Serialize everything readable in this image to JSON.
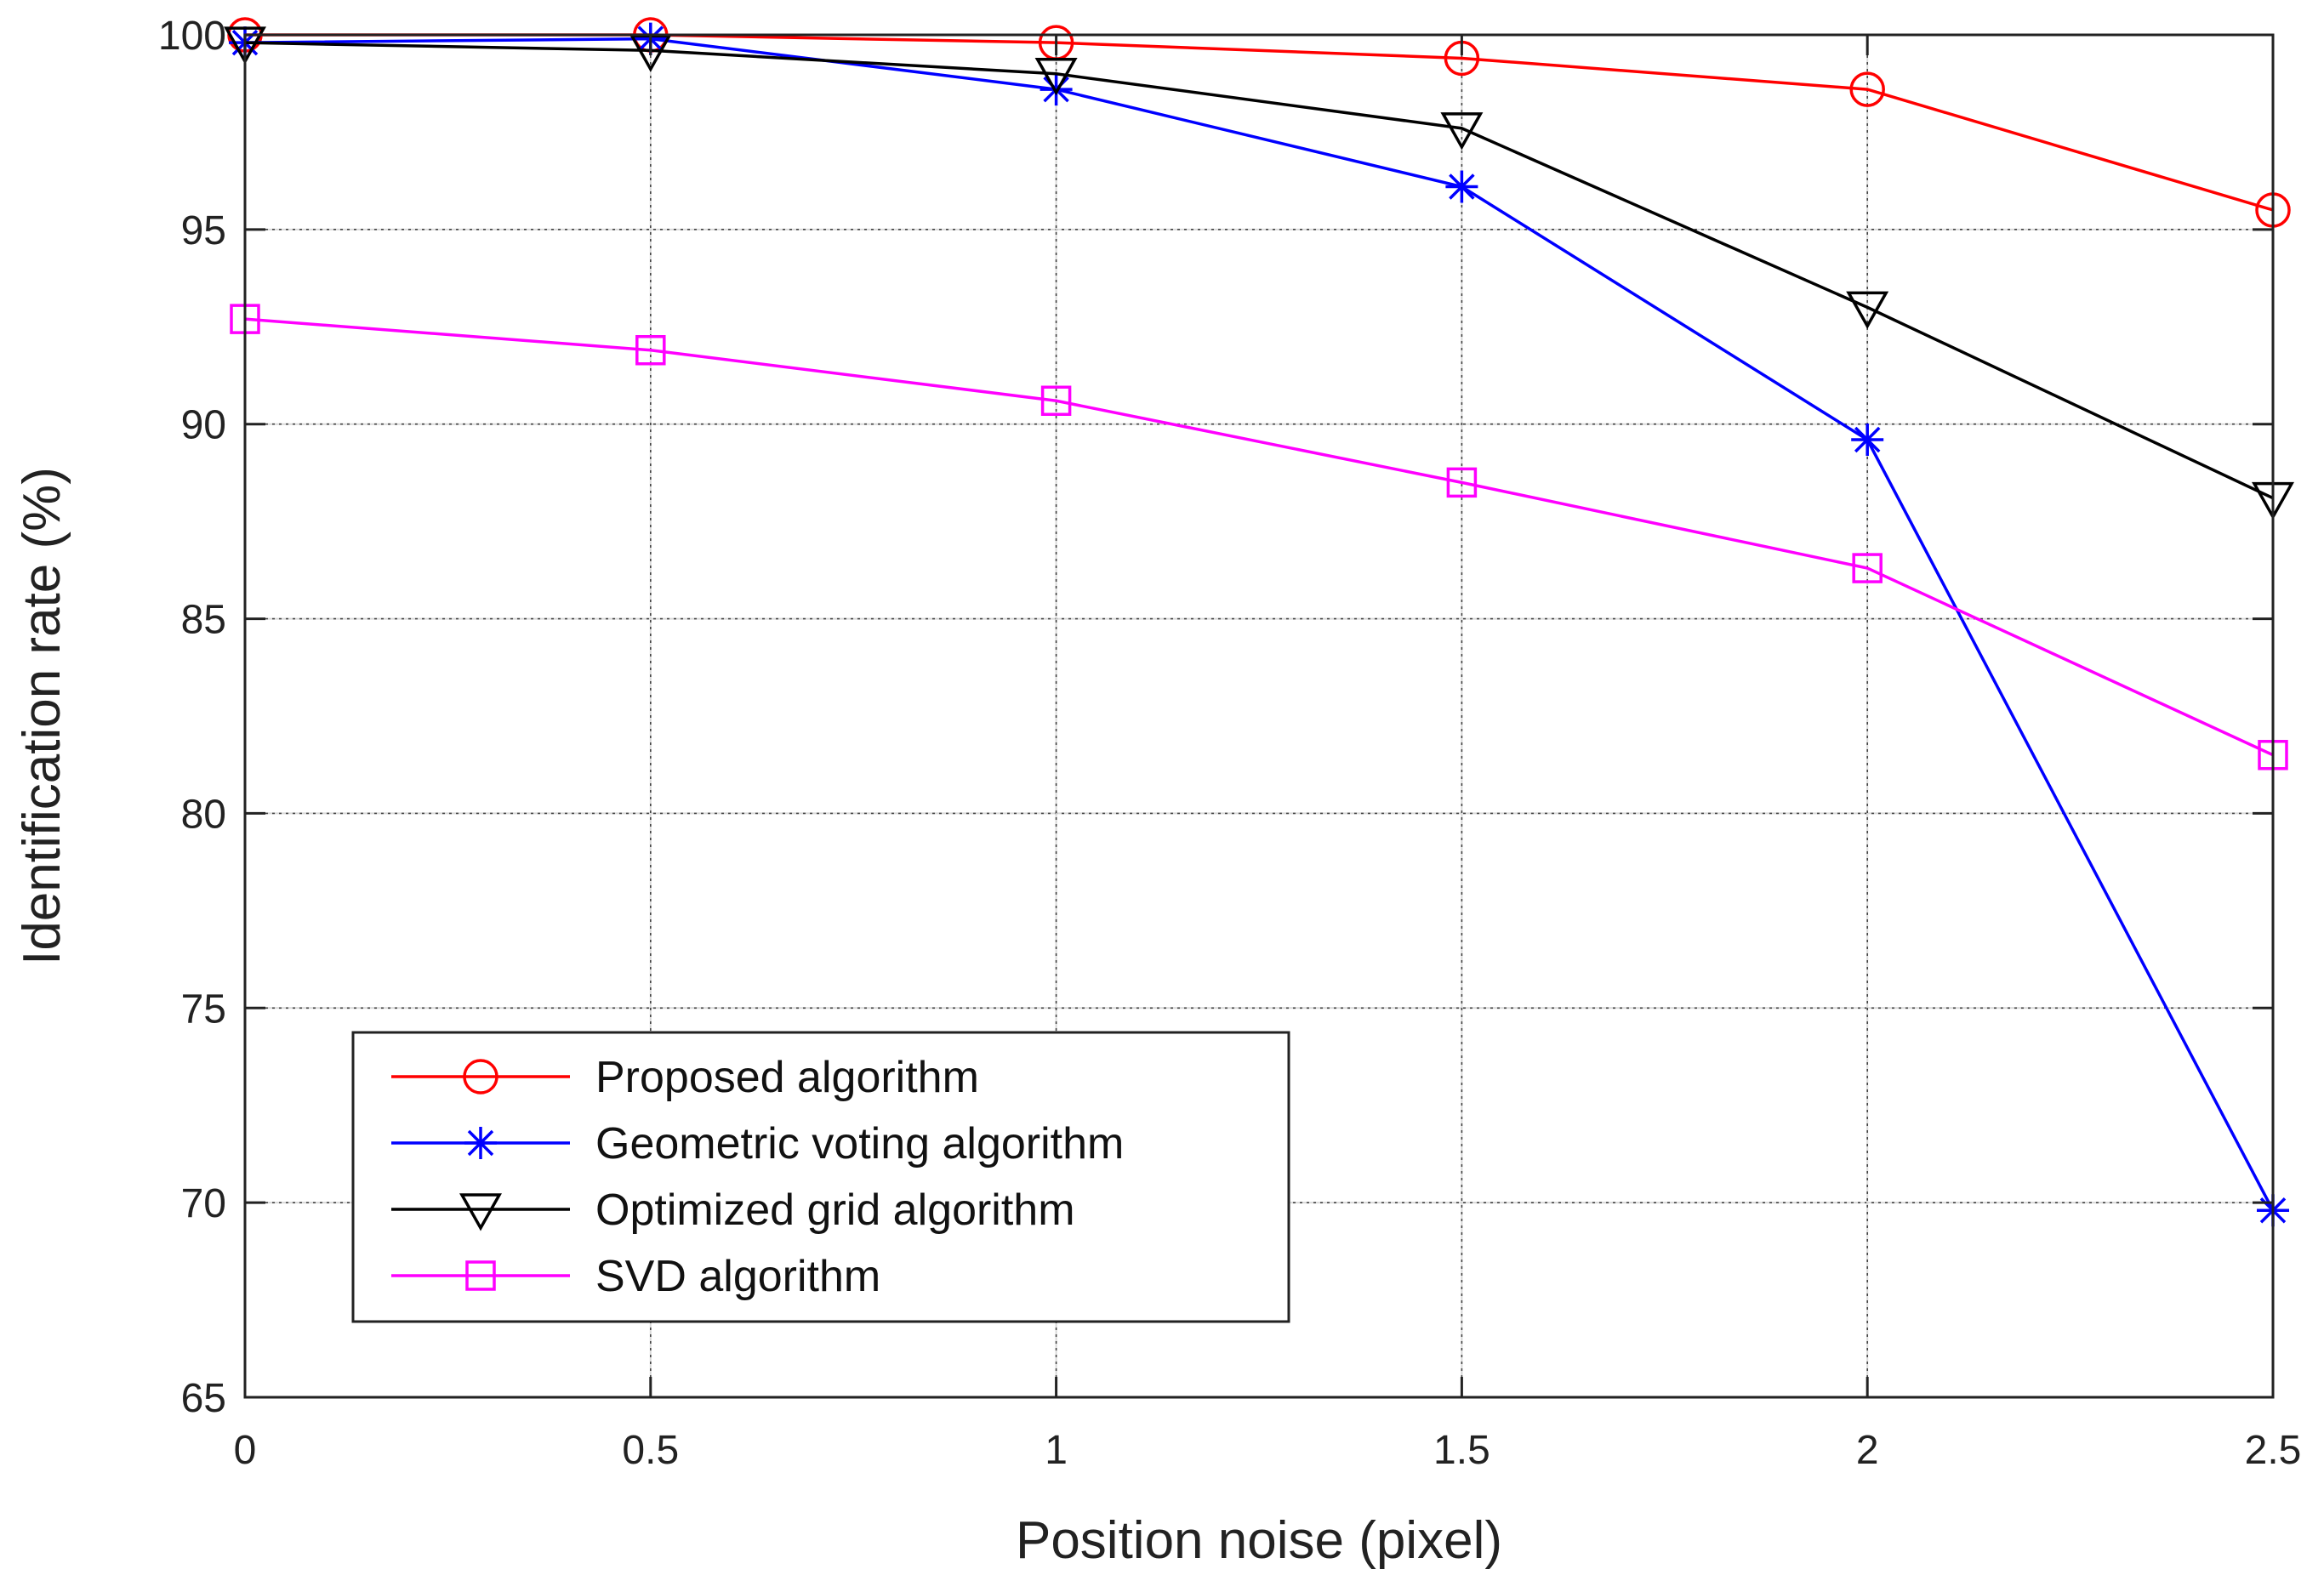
{
  "chart_data": {
    "type": "line",
    "title": "",
    "xlabel": "Position noise (pixel)",
    "ylabel": "Identification rate (%)",
    "x": [
      0,
      0.5,
      1,
      1.5,
      2,
      2.5
    ],
    "xlim": [
      0,
      2.5
    ],
    "ylim": [
      65,
      100
    ],
    "xticks": [
      0,
      0.5,
      1,
      1.5,
      2,
      2.5
    ],
    "xtick_labels": [
      "0",
      "0.5",
      "1",
      "1.5",
      "2",
      "2.5"
    ],
    "yticks": [
      65,
      70,
      75,
      80,
      85,
      90,
      95,
      100
    ],
    "ytick_labels": [
      "65",
      "70",
      "75",
      "80",
      "85",
      "90",
      "95",
      "100"
    ],
    "grid": true,
    "legend_position": "lower-left",
    "series": [
      {
        "name": "Proposed algorithm",
        "color": "#ff0000",
        "marker": "circle",
        "values": [
          100,
          100,
          99.8,
          99.4,
          98.6,
          95.5
        ]
      },
      {
        "name": "Geometric voting algorithm",
        "color": "#0000ff",
        "marker": "asterisk",
        "values": [
          99.8,
          99.9,
          98.6,
          96.1,
          89.6,
          69.8
        ]
      },
      {
        "name": "Optimized grid algorithm",
        "color": "#000000",
        "marker": "triangle-down",
        "values": [
          99.8,
          99.6,
          99.0,
          97.6,
          93.0,
          88.1
        ]
      },
      {
        "name": "SVD algorithm",
        "color": "#ff00ff",
        "marker": "square",
        "values": [
          92.7,
          91.9,
          90.6,
          88.5,
          86.3,
          81.5
        ]
      }
    ]
  }
}
